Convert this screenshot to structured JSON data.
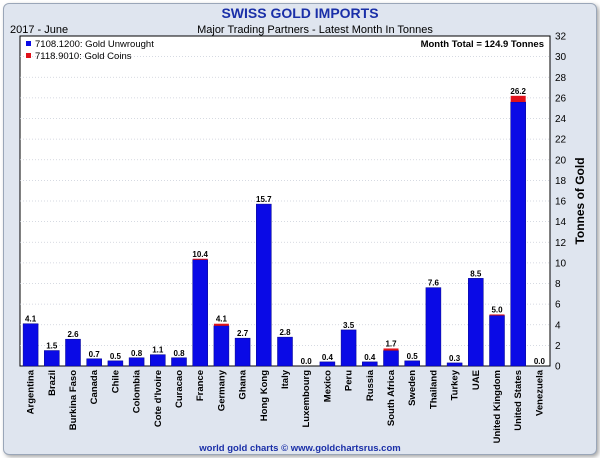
{
  "chart_data": {
    "type": "bar",
    "stacked": true,
    "title": "SWISS GOLD IMPORTS",
    "period": "2017 - June",
    "subtitle": "Major Trading Partners - Latest Month In Tonnes",
    "month_total": "Month Total = 124.9 Tonnes",
    "ylabel": "Tonnes of Gold",
    "ylim": [
      0,
      32
    ],
    "yticks": [
      0,
      2,
      4,
      6,
      8,
      10,
      12,
      14,
      16,
      18,
      20,
      22,
      24,
      26,
      28,
      30,
      32
    ],
    "y_axis_position": "right",
    "legend_position": "top-left",
    "grid": true,
    "categories": [
      "Argentina",
      "Brazil",
      "Burkina Faso",
      "Canada",
      "Chile",
      "Colombia",
      "Cote d'Ivoire",
      "Curacao",
      "France",
      "Germany",
      "Ghana",
      "Hong Kong",
      "Italy",
      "Luxembourg",
      "Mexico",
      "Peru",
      "Russia",
      "South Africa",
      "Sweden",
      "Thailand",
      "Turkey",
      "UAE",
      "United Kingdom",
      "United States",
      "Venezuela"
    ],
    "labels": [
      "4.1",
      "1.5",
      "2.6",
      "0.7",
      "0.5",
      "0.8",
      "1.1",
      "0.8",
      "10.4",
      "4.1",
      "2.7",
      "15.7",
      "2.8",
      "0.0",
      "0.4",
      "3.5",
      "0.4",
      "1.7",
      "0.5",
      "7.6",
      "0.3",
      "8.5",
      "5.0",
      "26.2",
      "0.0"
    ],
    "series": [
      {
        "name": "7108.1200: Gold Unwrought",
        "color": "#0a0ae6",
        "values": [
          4.1,
          1.5,
          2.6,
          0.7,
          0.5,
          0.8,
          1.1,
          0.8,
          10.3,
          3.9,
          2.7,
          15.7,
          2.8,
          0.0,
          0.4,
          3.5,
          0.4,
          1.5,
          0.5,
          7.6,
          0.3,
          8.5,
          4.9,
          25.6,
          0.0
        ]
      },
      {
        "name": "7118.9010: Gold Coins",
        "color": "#e0121b",
        "values": [
          0.0,
          0.0,
          0.0,
          0.0,
          0.0,
          0.0,
          0.0,
          0.0,
          0.1,
          0.2,
          0.0,
          0.0,
          0.0,
          0.0,
          0.0,
          0.0,
          0.0,
          0.2,
          0.0,
          0.0,
          0.0,
          0.0,
          0.1,
          0.6,
          0.0
        ]
      }
    ]
  },
  "footer": "world gold charts © www.goldchartsrus.com"
}
